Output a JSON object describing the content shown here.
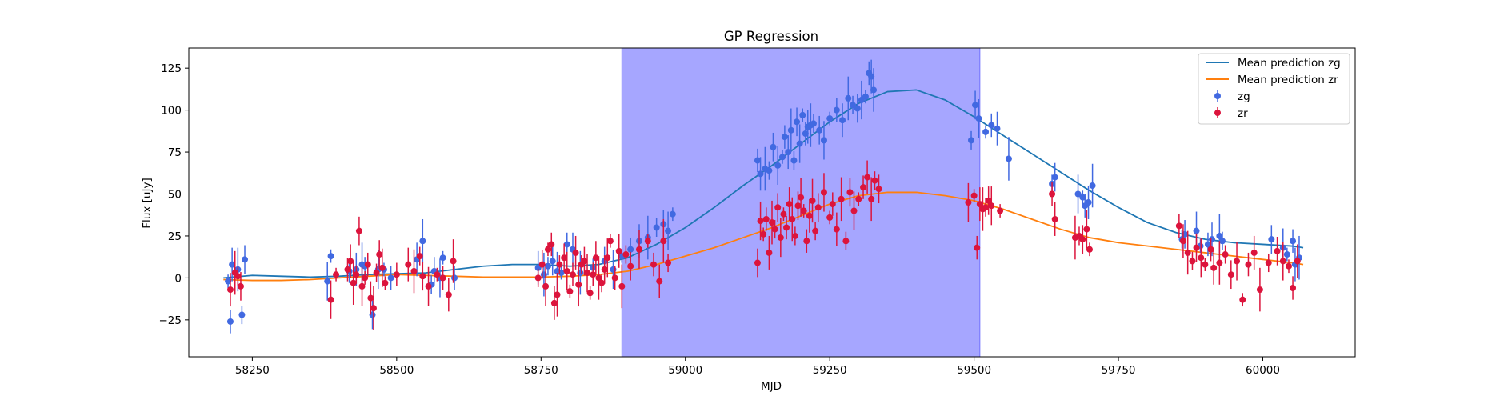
{
  "chart_data": {
    "type": "scatter",
    "title": "GP Regression",
    "xlabel": "MJD",
    "ylabel": "Flux [uJy]",
    "xlim": [
      58140,
      60160
    ],
    "ylim": [
      -47,
      137
    ],
    "xticks": [
      58250,
      58500,
      58750,
      59000,
      59250,
      59500,
      59750,
      60000
    ],
    "xtick_labels": [
      "58250",
      "58500",
      "58750",
      "59000",
      "59250",
      "59500",
      "59750",
      "60000"
    ],
    "yticks": [
      -25,
      0,
      25,
      50,
      75,
      100,
      125
    ],
    "ytick_labels": [
      "−25",
      "0",
      "25",
      "50",
      "75",
      "100",
      "125"
    ],
    "shaded_region": {
      "x": [
        58890,
        59510
      ],
      "color": "#a6a6ff"
    },
    "legend_position": "upper right",
    "lines": [
      {
        "name": "Mean prediction zg",
        "color": "#1f77b4",
        "x": [
          58200,
          58250,
          58300,
          58350,
          58400,
          58450,
          58500,
          58550,
          58600,
          58650,
          58700,
          58750,
          58800,
          58850,
          58900,
          58950,
          59000,
          59050,
          59100,
          59150,
          59200,
          59250,
          59300,
          59350,
          59400,
          59450,
          59500,
          59550,
          59600,
          59650,
          59700,
          59750,
          59800,
          59850,
          59900,
          59950,
          60000,
          60050,
          60070
        ],
        "y": [
          0,
          1.5,
          1,
          0.5,
          1,
          2,
          2.5,
          3,
          5,
          7,
          8,
          8,
          7,
          8,
          12,
          20,
          30,
          42,
          55,
          67,
          80,
          93,
          104,
          111,
          112,
          106,
          96,
          85,
          74,
          63,
          52,
          42,
          33,
          27,
          23,
          21,
          20,
          19,
          18
        ]
      },
      {
        "name": "Mean prediction zr",
        "color": "#ff7f0e",
        "x": [
          58200,
          58250,
          58300,
          58350,
          58400,
          58450,
          58500,
          58550,
          58600,
          58650,
          58700,
          58750,
          58800,
          58850,
          58900,
          58950,
          59000,
          59050,
          59100,
          59150,
          59200,
          59250,
          59300,
          59350,
          59400,
          59450,
          59500,
          59550,
          59600,
          59650,
          59700,
          59750,
          59800,
          59850,
          59900,
          59950,
          60000,
          60050,
          60070
        ],
        "y": [
          -1,
          -1.5,
          -1.5,
          -1,
          0,
          1,
          2,
          1.5,
          1,
          0.5,
          0.5,
          0.5,
          1,
          2,
          4,
          8,
          13,
          18,
          24,
          30,
          37,
          44,
          49,
          51,
          51,
          49,
          46,
          41,
          35,
          29,
          24,
          21,
          19,
          17,
          15,
          13,
          11,
          9,
          8
        ]
      }
    ],
    "series": [
      {
        "name": "zg",
        "color": "#4169e1",
        "x": [
          58208,
          58212,
          58215,
          58225,
          58232,
          58237,
          58380,
          58386,
          58418,
          58430,
          58440,
          58445,
          58458,
          58468,
          58478,
          58490,
          58535,
          58545,
          58560,
          58565,
          58575,
          58580,
          58600,
          58745,
          58755,
          58762,
          58770,
          58778,
          58785,
          58795,
          58805,
          58818,
          58840,
          58860,
          58875,
          58890,
          58905,
          58920,
          58935,
          58950,
          58962,
          58970,
          58978,
          59125,
          59130,
          59138,
          59145,
          59152,
          59160,
          59168,
          59172,
          59178,
          59183,
          59188,
          59193,
          59198,
          59203,
          59208,
          59212,
          59217,
          59222,
          59232,
          59240,
          59250,
          59262,
          59272,
          59282,
          59290,
          59298,
          59305,
          59312,
          59318,
          59322,
          59326,
          59495,
          59502,
          59508,
          59520,
          59530,
          59540,
          59560,
          59635,
          59640,
          59680,
          59688,
          59692,
          59698,
          59705,
          59860,
          59865,
          59885,
          59892,
          59905,
          59912,
          59925,
          59930,
          60015,
          60035,
          60042,
          60052,
          60056,
          60063
        ],
        "y": [
          -2,
          -26,
          8,
          5,
          -22,
          11,
          -2,
          13,
          4,
          5,
          8,
          7,
          -22,
          5,
          5,
          0,
          11,
          22,
          -4,
          4,
          0,
          12,
          0,
          6,
          2,
          7,
          10,
          4,
          3,
          20,
          17,
          3,
          6,
          10,
          5,
          13,
          17,
          22,
          24,
          30,
          32,
          28,
          38,
          70,
          62,
          65,
          64,
          78,
          67,
          72,
          84,
          75,
          88,
          70,
          93,
          80,
          97,
          86,
          90,
          91,
          92,
          88,
          82,
          95,
          100,
          94,
          107,
          103,
          101,
          106,
          108,
          122,
          120,
          112,
          82,
          103,
          95,
          87,
          91,
          89,
          71,
          56,
          60,
          50,
          48,
          43,
          45,
          55,
          23,
          26,
          28,
          19,
          20,
          23,
          25,
          22,
          23,
          18,
          14,
          22,
          8,
          12
        ]
      },
      {
        "name": "zr",
        "color": "#dc143c",
        "x": [
          58212,
          58220,
          58225,
          58230,
          58386,
          58395,
          58415,
          58420,
          58425,
          58430,
          58435,
          58440,
          58445,
          58450,
          58455,
          58460,
          58465,
          58470,
          58475,
          58480,
          58500,
          58520,
          58530,
          58540,
          58545,
          58555,
          58570,
          58580,
          58590,
          58598,
          58745,
          58752,
          58758,
          58762,
          58768,
          58773,
          58778,
          58782,
          58790,
          58795,
          58800,
          58805,
          58810,
          58815,
          58820,
          58825,
          58830,
          58835,
          58840,
          58845,
          58850,
          58855,
          58860,
          58865,
          58870,
          58878,
          58885,
          58890,
          58897,
          58905,
          58920,
          58935,
          58945,
          58955,
          58962,
          58970,
          59125,
          59130,
          59135,
          59140,
          59145,
          59150,
          59155,
          59160,
          59165,
          59170,
          59175,
          59180,
          59185,
          59190,
          59195,
          59200,
          59205,
          59210,
          59215,
          59220,
          59225,
          59230,
          59240,
          59250,
          59255,
          59262,
          59270,
          59278,
          59285,
          59292,
          59300,
          59308,
          59315,
          59322,
          59328,
          59335,
          59490,
          59500,
          59505,
          59510,
          59515,
          59520,
          59525,
          59530,
          59545,
          59635,
          59640,
          59675,
          59682,
          59688,
          59695,
          59700,
          59855,
          59862,
          59870,
          59878,
          59885,
          59893,
          59900,
          59910,
          59915,
          59925,
          59935,
          59945,
          59955,
          59965,
          59975,
          59985,
          59995,
          60010,
          60025,
          60035,
          60045,
          60052,
          60060
        ],
        "y": [
          -7,
          3,
          1,
          -5,
          -13,
          2,
          5,
          10,
          -3,
          2,
          28,
          -5,
          0,
          8,
          -12,
          -18,
          3,
          14,
          6,
          -3,
          2,
          8,
          4,
          13,
          1,
          -5,
          2,
          0,
          -10,
          10,
          0,
          8,
          -5,
          17,
          20,
          -15,
          -10,
          8,
          12,
          4,
          -8,
          2,
          15,
          -4,
          8,
          10,
          3,
          -9,
          2,
          12,
          0,
          -3,
          5,
          12,
          22,
          0,
          16,
          -5,
          14,
          7,
          17,
          22,
          8,
          -2,
          22,
          9,
          9,
          34,
          26,
          35,
          15,
          33,
          29,
          42,
          24,
          38,
          30,
          44,
          35,
          25,
          43,
          48,
          40,
          22,
          37,
          46,
          28,
          42,
          51,
          36,
          44,
          29,
          47,
          22,
          51,
          40,
          47,
          54,
          60,
          47,
          58,
          53,
          45,
          49,
          18,
          44,
          41,
          42,
          46,
          43,
          40,
          50,
          35,
          24,
          25,
          23,
          29,
          17,
          31,
          22,
          15,
          10,
          18,
          12,
          8,
          17,
          6,
          9,
          14,
          2,
          10,
          -13,
          8,
          15,
          -7,
          9,
          16,
          10,
          7,
          -6,
          10
        ]
      }
    ]
  }
}
